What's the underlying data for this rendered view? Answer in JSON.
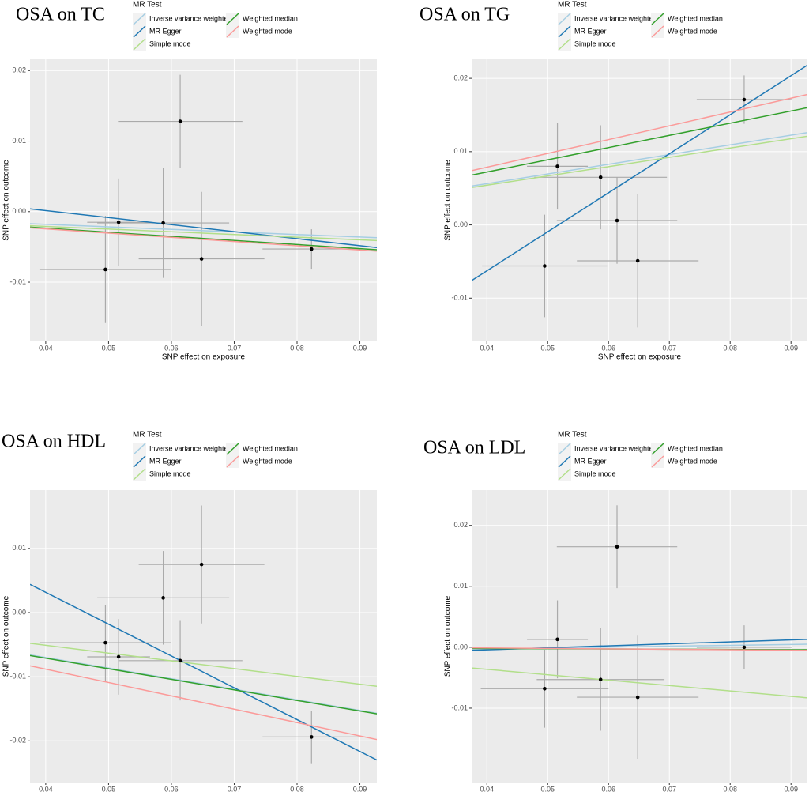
{
  "chart_data": [
    {
      "type": "scatter",
      "title": "OSA on TC",
      "legend_title": "MR Test",
      "xlabel": "SNP effect on exposure",
      "ylabel": "SNP effect on outcome",
      "grid": true,
      "point_color": "#000000",
      "errorbar_color": "#aaaaaa",
      "xlim": [
        0.0375,
        0.0927
      ],
      "ylim": [
        -0.0184,
        0.0216
      ],
      "xticks": [
        0.04,
        0.05,
        0.06,
        0.07,
        0.08,
        0.09
      ],
      "yticks": [
        -0.01,
        {
          "value": 0,
          "label": "0.00"
        },
        0.01,
        0.02
      ],
      "x": [
        0.0495,
        0.0516,
        0.0587,
        0.0614,
        0.0648,
        0.0823
      ],
      "y": [
        -0.0082,
        -0.0015,
        -0.0016,
        0.0128,
        -0.0067,
        -0.0053
      ],
      "x_err": [
        0.0105,
        0.005,
        0.0105,
        0.0099,
        0.01,
        0.0078
      ],
      "y_err": [
        0.0076,
        0.0062,
        0.0078,
        0.0066,
        0.0095,
        0.0028
      ],
      "series": [
        {
          "name": "Inverse variance weighted",
          "color": "#a6cee3",
          "values": [
            -0.0017,
            -0.0037
          ]
        },
        {
          "name": "MR Egger",
          "color": "#1f78b4",
          "values": [
            0.0004,
            -0.0051
          ]
        },
        {
          "name": "Simple mode",
          "color": "#b2df8a",
          "values": [
            -0.002,
            -0.0041
          ]
        },
        {
          "name": "Weighted median",
          "color": "#33a02c",
          "values": [
            -0.0022,
            -0.0054
          ]
        },
        {
          "name": "Weighted mode",
          "color": "#fb9a99",
          "values": [
            -0.0023,
            -0.0056
          ]
        }
      ]
    },
    {
      "type": "scatter",
      "title": "OSA on TG",
      "legend_title": "MR Test",
      "xlabel": "SNP effect on exposure",
      "ylabel": "SNP effect on outcome",
      "grid": true,
      "point_color": "#000000",
      "errorbar_color": "#aaaaaa",
      "xlim": [
        0.0375,
        0.0927
      ],
      "ylim": [
        -0.0159,
        0.0226
      ],
      "xticks": [
        0.04,
        0.05,
        0.06,
        0.07,
        0.08,
        0.09
      ],
      "yticks": [
        -0.01,
        {
          "value": 0,
          "label": "0.00"
        },
        0.01,
        0.02
      ],
      "x": [
        0.0495,
        0.0516,
        0.0587,
        0.0614,
        0.0648,
        0.0823
      ],
      "y": [
        -0.0056,
        0.008,
        0.0065,
        0.0006,
        -0.0049,
        0.0171
      ],
      "x_err": [
        0.0103,
        0.005,
        0.0109,
        0.0099,
        0.01,
        0.0078
      ],
      "y_err": [
        0.007,
        0.0059,
        0.0071,
        0.0059,
        0.0091,
        0.0033
      ],
      "series": [
        {
          "name": "Inverse variance weighted",
          "color": "#a6cee3",
          "values": [
            0.0053,
            0.0126
          ]
        },
        {
          "name": "MR Egger",
          "color": "#1f78b4",
          "values": [
            -0.0076,
            0.0218
          ]
        },
        {
          "name": "Simple mode",
          "color": "#b2df8a",
          "values": [
            0.0051,
            0.0121
          ]
        },
        {
          "name": "Weighted median",
          "color": "#33a02c",
          "values": [
            0.0068,
            0.016
          ]
        },
        {
          "name": "Weighted mode",
          "color": "#fb9a99",
          "values": [
            0.0074,
            0.0178
          ]
        }
      ]
    },
    {
      "type": "scatter",
      "title": "OSA on HDL",
      "legend_title": "MR Test",
      "xlabel": "SNP effect on exposure",
      "ylabel": "SNP effect on outcome",
      "grid": true,
      "point_color": "#000000",
      "errorbar_color": "#aaaaaa",
      "xlim": [
        0.0375,
        0.0927
      ],
      "ylim": [
        -0.0265,
        0.0191
      ],
      "xticks": [
        0.04,
        0.05,
        0.06,
        0.07,
        0.08,
        0.09
      ],
      "yticks": [
        -0.02,
        -0.01,
        {
          "value": 0,
          "label": "0.00"
        },
        0.01
      ],
      "x": [
        0.0495,
        0.0516,
        0.0587,
        0.0614,
        0.0648,
        0.0823
      ],
      "y": [
        -0.0047,
        -0.0069,
        0.0023,
        -0.0075,
        0.0075,
        -0.0194
      ],
      "x_err": [
        0.0105,
        0.005,
        0.0105,
        0.0099,
        0.01,
        0.0078
      ],
      "y_err": [
        0.0059,
        0.0059,
        0.0073,
        0.0062,
        0.0092,
        0.0041
      ],
      "series": [
        {
          "name": "Inverse variance weighted",
          "color": "#a6cee3",
          "values": [
            -0.0066,
            -0.0157
          ]
        },
        {
          "name": "MR Egger",
          "color": "#1f78b4",
          "values": [
            0.0044,
            -0.023
          ]
        },
        {
          "name": "Simple mode",
          "color": "#b2df8a",
          "values": [
            -0.0048,
            -0.0115
          ]
        },
        {
          "name": "Weighted median",
          "color": "#33a02c",
          "values": [
            -0.0067,
            -0.0158
          ]
        },
        {
          "name": "Weighted mode",
          "color": "#fb9a99",
          "values": [
            -0.0083,
            -0.0198
          ]
        }
      ]
    },
    {
      "type": "scatter",
      "title": "OSA on LDL",
      "legend_title": "MR Test",
      "xlabel": "SNP effect on exposure",
      "ylabel": "SNP effect on outcome",
      "grid": true,
      "point_color": "#000000",
      "errorbar_color": "#aaaaaa",
      "xlim": [
        0.0375,
        0.0927
      ],
      "ylim": [
        -0.0222,
        0.0258
      ],
      "xticks": [
        0.04,
        0.05,
        0.06,
        0.07,
        0.08,
        0.09
      ],
      "yticks": [
        -0.01,
        {
          "value": 0,
          "label": "0.00"
        },
        0.01,
        0.02
      ],
      "x": [
        0.0495,
        0.0516,
        0.0587,
        0.0614,
        0.0648,
        0.0823
      ],
      "y": [
        -0.0068,
        0.0013,
        -0.0053,
        0.0165,
        -0.0082,
        0.0
      ],
      "x_err": [
        0.0105,
        0.005,
        0.0105,
        0.0099,
        0.01,
        0.0078
      ],
      "y_err": [
        0.0064,
        0.0064,
        0.0084,
        0.0068,
        0.0101,
        0.0036
      ],
      "series": [
        {
          "name": "Inverse variance weighted",
          "color": "#a6cee3",
          "values": [
            -0.0003,
            0.0005
          ]
        },
        {
          "name": "MR Egger",
          "color": "#1f78b4",
          "values": [
            -0.0005,
            0.0013
          ]
        },
        {
          "name": "Simple mode",
          "color": "#b2df8a",
          "values": [
            -0.0034,
            -0.0083
          ]
        },
        {
          "name": "Weighted median",
          "color": "#33a02c",
          "values": [
            -0.0002,
            -0.0004
          ]
        },
        {
          "name": "Weighted mode",
          "color": "#fb9a99",
          "values": [
            -0.0001,
            -0.0005
          ]
        }
      ]
    }
  ]
}
